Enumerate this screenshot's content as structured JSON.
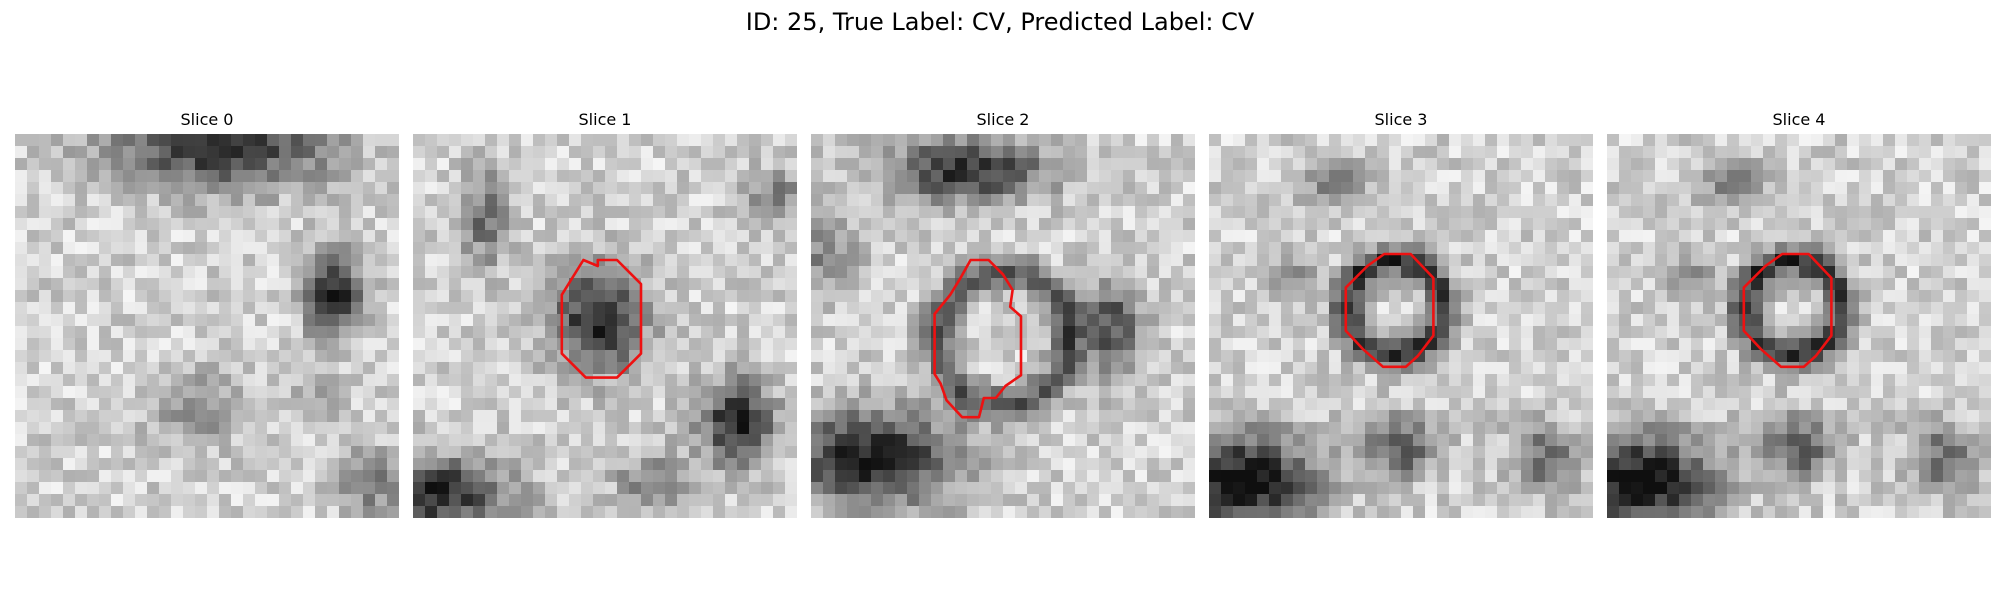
{
  "figure": {
    "title": "ID: 25, True Label: CV, Predicted Label: CV"
  },
  "slices": [
    {
      "label": "Slice 0",
      "has_contour": false,
      "seed": 11
    },
    {
      "label": "Slice 1",
      "has_contour": true,
      "seed": 23
    },
    {
      "label": "Slice 2",
      "has_contour": true,
      "seed": 37
    },
    {
      "label": "Slice 3",
      "has_contour": true,
      "seed": 41
    },
    {
      "label": "Slice 4",
      "has_contour": true,
      "seed": 41
    }
  ],
  "colors": {
    "contour": "#ee1111"
  }
}
